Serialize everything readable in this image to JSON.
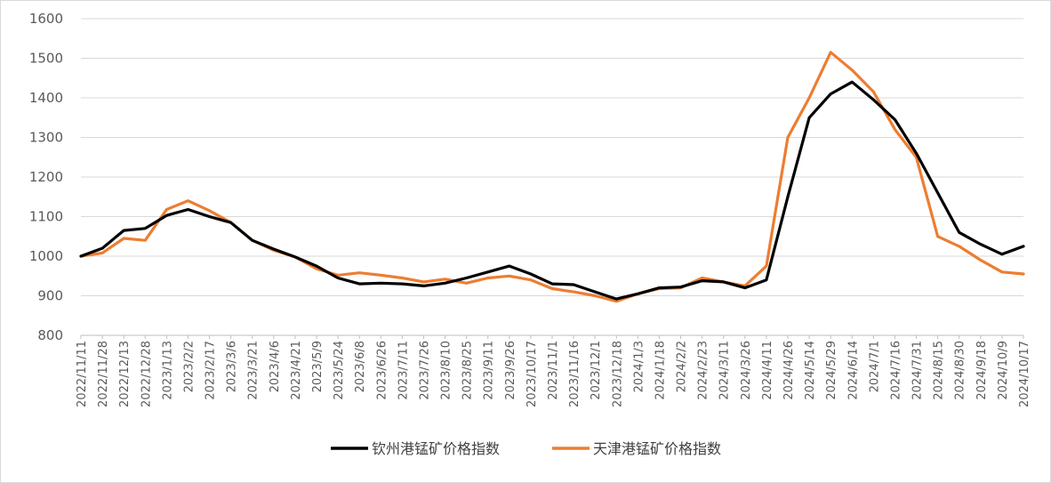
{
  "chart_data": {
    "type": "line",
    "title": "",
    "xlabel": "",
    "ylabel": "",
    "ylim": [
      800,
      1600
    ],
    "yticks": [
      800,
      900,
      1000,
      1100,
      1200,
      1300,
      1400,
      1500,
      1600
    ],
    "grid": "horizontal",
    "legend_position": "bottom",
    "x_tick_labels": [
      "2022/11/11",
      "2022/11/28",
      "2022/12/13",
      "2022/12/28",
      "2023/1/13",
      "2023/2/2",
      "2023/2/17",
      "2023/3/6",
      "2023/3/21",
      "2023/4/6",
      "2023/4/21",
      "2023/5/9",
      "2023/5/24",
      "2023/6/8",
      "2023/6/26",
      "2023/7/11",
      "2023/7/26",
      "2023/8/10",
      "2023/8/25",
      "2023/9/11",
      "2023/9/26",
      "2023/10/17",
      "2023/11/1",
      "2023/11/16",
      "2023/12/1",
      "2023/12/18",
      "2024/1/3",
      "2024/1/18",
      "2024/2/2",
      "2024/2/23",
      "2024/3/11",
      "2024/3/26",
      "2024/4/11",
      "2024/4/26",
      "2024/5/14",
      "2024/5/29",
      "2024/6/14",
      "2024/7/1",
      "2024/7/16",
      "2024/7/31",
      "2024/8/15",
      "2024/8/30",
      "2024/9/18",
      "2024/10/9",
      "2024/10/17"
    ],
    "series": [
      {
        "name": "钦州港锰矿价格指数",
        "color": "#000000",
        "points": [
          [
            "2022/11/11",
            1000
          ],
          [
            "2022/11/28",
            1020
          ],
          [
            "2022/12/13",
            1065
          ],
          [
            "2022/12/28",
            1070
          ],
          [
            "2023/1/13",
            1103
          ],
          [
            "2023/2/2",
            1118
          ],
          [
            "2023/2/17",
            1100
          ],
          [
            "2023/3/6",
            1085
          ],
          [
            "2023/3/21",
            1040
          ],
          [
            "2023/4/6",
            1018
          ],
          [
            "2023/4/21",
            998
          ],
          [
            "2023/5/9",
            975
          ],
          [
            "2023/5/24",
            945
          ],
          [
            "2023/6/8",
            930
          ],
          [
            "2023/6/26",
            932
          ],
          [
            "2023/7/11",
            930
          ],
          [
            "2023/7/26",
            925
          ],
          [
            "2023/8/10",
            932
          ],
          [
            "2023/8/25",
            945
          ],
          [
            "2023/9/11",
            960
          ],
          [
            "2023/9/26",
            975
          ],
          [
            "2023/10/17",
            955
          ],
          [
            "2023/11/1",
            930
          ],
          [
            "2023/11/16",
            928
          ],
          [
            "2023/12/1",
            910
          ],
          [
            "2023/12/18",
            892
          ],
          [
            "2024/1/3",
            905
          ],
          [
            "2024/1/18",
            920
          ],
          [
            "2024/2/2",
            922
          ],
          [
            "2024/2/23",
            938
          ],
          [
            "2024/3/11",
            935
          ],
          [
            "2024/3/26",
            920
          ],
          [
            "2024/4/11",
            940
          ],
          [
            "2024/4/26",
            1150
          ],
          [
            "2024/5/14",
            1350
          ],
          [
            "2024/5/29",
            1410
          ],
          [
            "2024/6/14",
            1440
          ],
          [
            "2024/7/1",
            1395
          ],
          [
            "2024/7/16",
            1345
          ],
          [
            "2024/7/31",
            1260
          ],
          [
            "2024/8/15",
            1160
          ],
          [
            "2024/8/30",
            1060
          ],
          [
            "2024/9/18",
            1030
          ],
          [
            "2024/10/9",
            1005
          ],
          [
            "2024/10/17",
            1025
          ]
        ]
      },
      {
        "name": "天津港锰矿价格指数",
        "color": "#ED7D31",
        "points": [
          [
            "2022/11/11",
            1000
          ],
          [
            "2022/11/28",
            1008
          ],
          [
            "2022/12/13",
            1045
          ],
          [
            "2022/12/28",
            1040
          ],
          [
            "2023/1/13",
            1118
          ],
          [
            "2023/2/2",
            1140
          ],
          [
            "2023/2/17",
            1115
          ],
          [
            "2023/3/6",
            1085
          ],
          [
            "2023/3/21",
            1040
          ],
          [
            "2023/4/6",
            1015
          ],
          [
            "2023/4/21",
            998
          ],
          [
            "2023/5/9",
            968
          ],
          [
            "2023/5/24",
            952
          ],
          [
            "2023/6/8",
            958
          ],
          [
            "2023/6/26",
            952
          ],
          [
            "2023/7/11",
            945
          ],
          [
            "2023/7/26",
            935
          ],
          [
            "2023/8/10",
            942
          ],
          [
            "2023/8/25",
            932
          ],
          [
            "2023/9/11",
            945
          ],
          [
            "2023/9/26",
            950
          ],
          [
            "2023/10/17",
            940
          ],
          [
            "2023/11/1",
            918
          ],
          [
            "2023/11/16",
            910
          ],
          [
            "2023/12/1",
            900
          ],
          [
            "2023/12/18",
            886
          ],
          [
            "2024/1/3",
            905
          ],
          [
            "2024/1/18",
            918
          ],
          [
            "2024/2/2",
            920
          ],
          [
            "2024/2/23",
            945
          ],
          [
            "2024/3/11",
            935
          ],
          [
            "2024/3/26",
            925
          ],
          [
            "2024/4/11",
            975
          ],
          [
            "2024/4/26",
            1300
          ],
          [
            "2024/5/14",
            1400
          ],
          [
            "2024/5/29",
            1515
          ],
          [
            "2024/6/14",
            1470
          ],
          [
            "2024/7/1",
            1415
          ],
          [
            "2024/7/16",
            1320
          ],
          [
            "2024/7/31",
            1250
          ],
          [
            "2024/8/15",
            1050
          ],
          [
            "2024/8/30",
            1025
          ],
          [
            "2024/9/18",
            990
          ],
          [
            "2024/10/9",
            960
          ],
          [
            "2024/10/17",
            955
          ]
        ]
      }
    ]
  }
}
